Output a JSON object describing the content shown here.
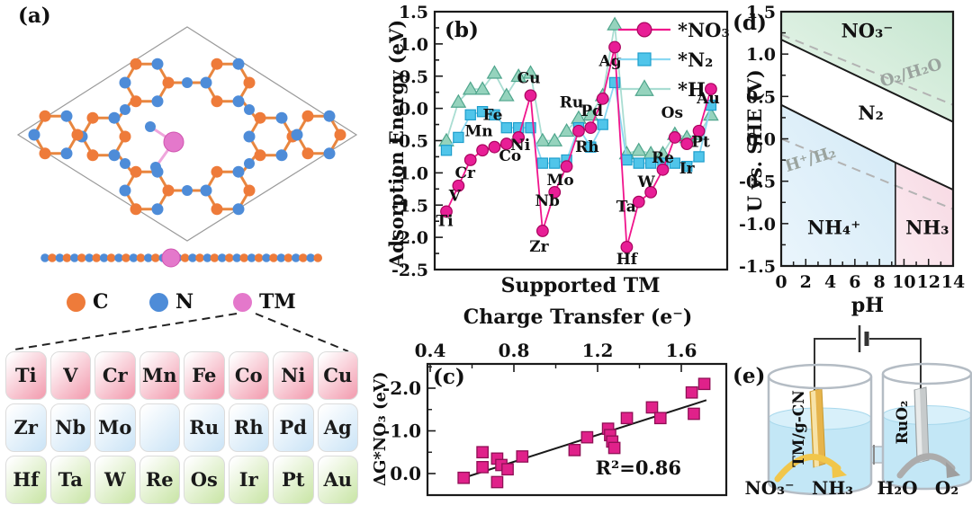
{
  "figure": {
    "panel_a": {
      "label": "(a)",
      "atom_legend": [
        {
          "name": "C",
          "color": "#EE7B3A"
        },
        {
          "name": "N",
          "color": "#4E8CD8"
        },
        {
          "name": "TM",
          "color": "#E478CB"
        }
      ],
      "tm_grid": {
        "rows": [
          {
            "tint": "pink",
            "cells": [
              "Ti",
              "V",
              "Cr",
              "Mn",
              "Fe",
              "Co",
              "Ni",
              "Cu"
            ]
          },
          {
            "tint": "blue",
            "cells": [
              "Zr",
              "Nb",
              "Mo",
              "",
              "Ru",
              "Rh",
              "Pd",
              "Ag"
            ]
          },
          {
            "tint": "green",
            "cells": [
              "Hf",
              "Ta",
              "W",
              "Re",
              "Os",
              "Ir",
              "Pt",
              "Au"
            ]
          }
        ]
      }
    },
    "panel_b": {
      "label": "(b)",
      "xlabel": "Supported TM",
      "ylabel": "Adsorption Energy (eV)"
    },
    "panel_c": {
      "label": "(c)",
      "top_xlabel": "Charge Transfer (e⁻)",
      "ylabel": "ΔG*NO₃ (eV)",
      "annotation": "R²=0.86"
    },
    "panel_d": {
      "label": "(d)",
      "xlabel": "pH",
      "ylabel": "U vs. SHE (V)"
    },
    "panel_e": {
      "label": "(e)",
      "anode_label": "TM/g-CN",
      "cathode_label": "RuO₂",
      "left_reactant": "NO₃⁻",
      "left_product": "NH₃",
      "right_reactant": "H₂O",
      "right_product": "O₂"
    }
  },
  "chart_data": [
    {
      "id": "b",
      "type": "line",
      "xlabel": "Supported TM",
      "ylabel": "Adsorption Energy (eV)",
      "ylim": [
        -2.5,
        1.5
      ],
      "ytick_step": 0.5,
      "grid": false,
      "legend_position": "top-right",
      "categories": [
        "Ti",
        "V",
        "Cr",
        "Mn",
        "Fe",
        "Co",
        "Ni",
        "Cu",
        "Zr",
        "Nb",
        "Mo",
        "Ru",
        "Rh",
        "Pd",
        "Ag",
        "Hf",
        "Ta",
        "W",
        "Re",
        "Os",
        "Ir",
        "Pt",
        "Au"
      ],
      "series": [
        {
          "name": "*H",
          "marker": "triangle",
          "marker_color": "#95D3BD",
          "marker_edge": "#4FA58C",
          "line_color": "#A9DDD2",
          "values": [
            -0.5,
            0.1,
            0.3,
            0.3,
            0.55,
            0.2,
            0.5,
            0.55,
            -0.5,
            -0.5,
            -0.35,
            -0.15,
            -0.1,
            0.2,
            1.3,
            -0.7,
            -0.65,
            -0.7,
            -0.7,
            -0.4,
            -0.45,
            -0.4,
            -0.1
          ]
        },
        {
          "name": "*N₂",
          "marker": "square",
          "marker_color": "#50C5EA",
          "marker_edge": "#1E9ECC",
          "line_color": "#8AD8F2",
          "values": [
            -0.65,
            -0.45,
            -0.1,
            -0.05,
            -0.1,
            -0.3,
            -0.3,
            -0.3,
            -0.85,
            -0.85,
            -0.8,
            -0.3,
            -0.6,
            -0.25,
            0.4,
            -0.8,
            -0.85,
            -0.85,
            -0.85,
            -0.85,
            -0.9,
            -0.75,
            0.05
          ]
        },
        {
          "name": "*NO₃",
          "marker": "circle",
          "marker_color": "#E81E96",
          "marker_edge": "#A8055E",
          "line_color": "#F0148C",
          "values": [
            -1.6,
            -1.2,
            -0.8,
            -0.65,
            -0.6,
            -0.55,
            -0.45,
            0.2,
            -1.9,
            -1.3,
            -0.9,
            -0.35,
            -0.3,
            0.15,
            0.95,
            -2.15,
            -1.45,
            -1.3,
            -0.95,
            -0.45,
            -0.55,
            -0.35,
            0.3
          ]
        }
      ],
      "legend_order": [
        "*NO₃",
        "*N₂",
        "*H"
      ]
    },
    {
      "id": "c",
      "type": "scatter",
      "top_xlabel": "Charge Transfer (e⁻)",
      "ylabel": "ΔG*NO₃ (eV)",
      "xlim": [
        0.39,
        1.81
      ],
      "xticks": [
        0.4,
        0.8,
        1.2,
        1.6
      ],
      "ylim": [
        0.5,
        -2.55
      ],
      "y_inverted": true,
      "yticks": [
        0.0,
        -1.0,
        -2.0
      ],
      "marker_color": "#E0218A",
      "marker_edge": "#8F0F55",
      "points": [
        [
          0.56,
          0.1
        ],
        [
          0.65,
          -0.5
        ],
        [
          0.65,
          -0.15
        ],
        [
          0.72,
          -0.35
        ],
        [
          0.72,
          0.2
        ],
        [
          0.74,
          -0.2
        ],
        [
          0.77,
          -0.1
        ],
        [
          0.84,
          -0.4
        ],
        [
          1.09,
          -0.55
        ],
        [
          1.15,
          -0.85
        ],
        [
          1.25,
          -1.05
        ],
        [
          1.26,
          -0.9
        ],
        [
          1.27,
          -0.75
        ],
        [
          1.28,
          -0.6
        ],
        [
          1.34,
          -1.3
        ],
        [
          1.46,
          -1.55
        ],
        [
          1.5,
          -1.3
        ],
        [
          1.65,
          -1.9
        ],
        [
          1.66,
          -1.4
        ],
        [
          1.71,
          -2.1
        ]
      ],
      "fit_line": [
        [
          0.56,
          0.1
        ],
        [
          1.72,
          -1.72
        ]
      ],
      "annotation": "R²=0.86"
    },
    {
      "id": "d",
      "type": "region",
      "xlabel": "pH",
      "ylabel": "U vs. SHE (V)",
      "xlim": [
        0,
        14
      ],
      "ylim": [
        -1.5,
        1.5
      ],
      "xticks": [
        0,
        2,
        4,
        6,
        8,
        10,
        12,
        14
      ],
      "ytick_step": 0.5,
      "line_color": "#1A1A1A",
      "dash_color": "#B3B3B3",
      "dash_label_color": "#9AA39E",
      "regions": [
        {
          "label": "NO₃⁻",
          "fill_from": "#EDF7EE",
          "fill_to": "#C6E6D0",
          "label_pos": [
            7.0,
            1.27
          ],
          "polygon": [
            [
              0,
              1.5
            ],
            [
              14,
              1.5
            ],
            [
              14,
              0.2
            ],
            [
              0,
              1.17
            ]
          ]
        },
        {
          "label": "N₂",
          "fill_from": "#FFFFFF",
          "fill_to": "#FFFFFF",
          "label_pos": [
            7.3,
            0.3
          ],
          "polygon": [
            [
              0,
              1.17
            ],
            [
              14,
              0.2
            ],
            [
              14,
              -0.6
            ],
            [
              9.3,
              -0.28
            ],
            [
              0,
              0.4
            ]
          ]
        },
        {
          "label": "NH₄⁺",
          "fill_from": "#EAF5FC",
          "fill_to": "#D2E9F6",
          "label_pos": [
            4.3,
            -1.05
          ],
          "polygon": [
            [
              0,
              0.4
            ],
            [
              9.3,
              -0.28
            ],
            [
              9.3,
              -1.5
            ],
            [
              0,
              -1.5
            ]
          ]
        },
        {
          "label": "NH₃",
          "fill_from": "#FBEAF0",
          "fill_to": "#F7D9E3",
          "label_pos": [
            11.9,
            -1.05
          ],
          "polygon": [
            [
              9.3,
              -0.28
            ],
            [
              14,
              -0.6
            ],
            [
              14,
              -1.5
            ],
            [
              9.3,
              -1.5
            ]
          ]
        }
      ],
      "boundaries": [
        [
          [
            0,
            1.17
          ],
          [
            14,
            0.2
          ]
        ],
        [
          [
            0,
            0.4
          ],
          [
            9.3,
            -0.28
          ],
          [
            14,
            -0.6
          ]
        ],
        [
          [
            9.3,
            -0.28
          ],
          [
            9.3,
            -1.5
          ]
        ]
      ],
      "dashed_lines": [
        {
          "label": "O₂/H₂O",
          "points": [
            [
              0,
              1.23
            ],
            [
              14,
              0.4
            ]
          ],
          "label_pos": [
            10.7,
            0.72
          ],
          "label_rotation": -17
        },
        {
          "label": "H⁺/H₂",
          "points": [
            [
              0,
              0.0
            ],
            [
              14,
              -0.83
            ]
          ],
          "label_pos": [
            2.5,
            -0.3
          ],
          "label_rotation": -17
        }
      ]
    }
  ]
}
